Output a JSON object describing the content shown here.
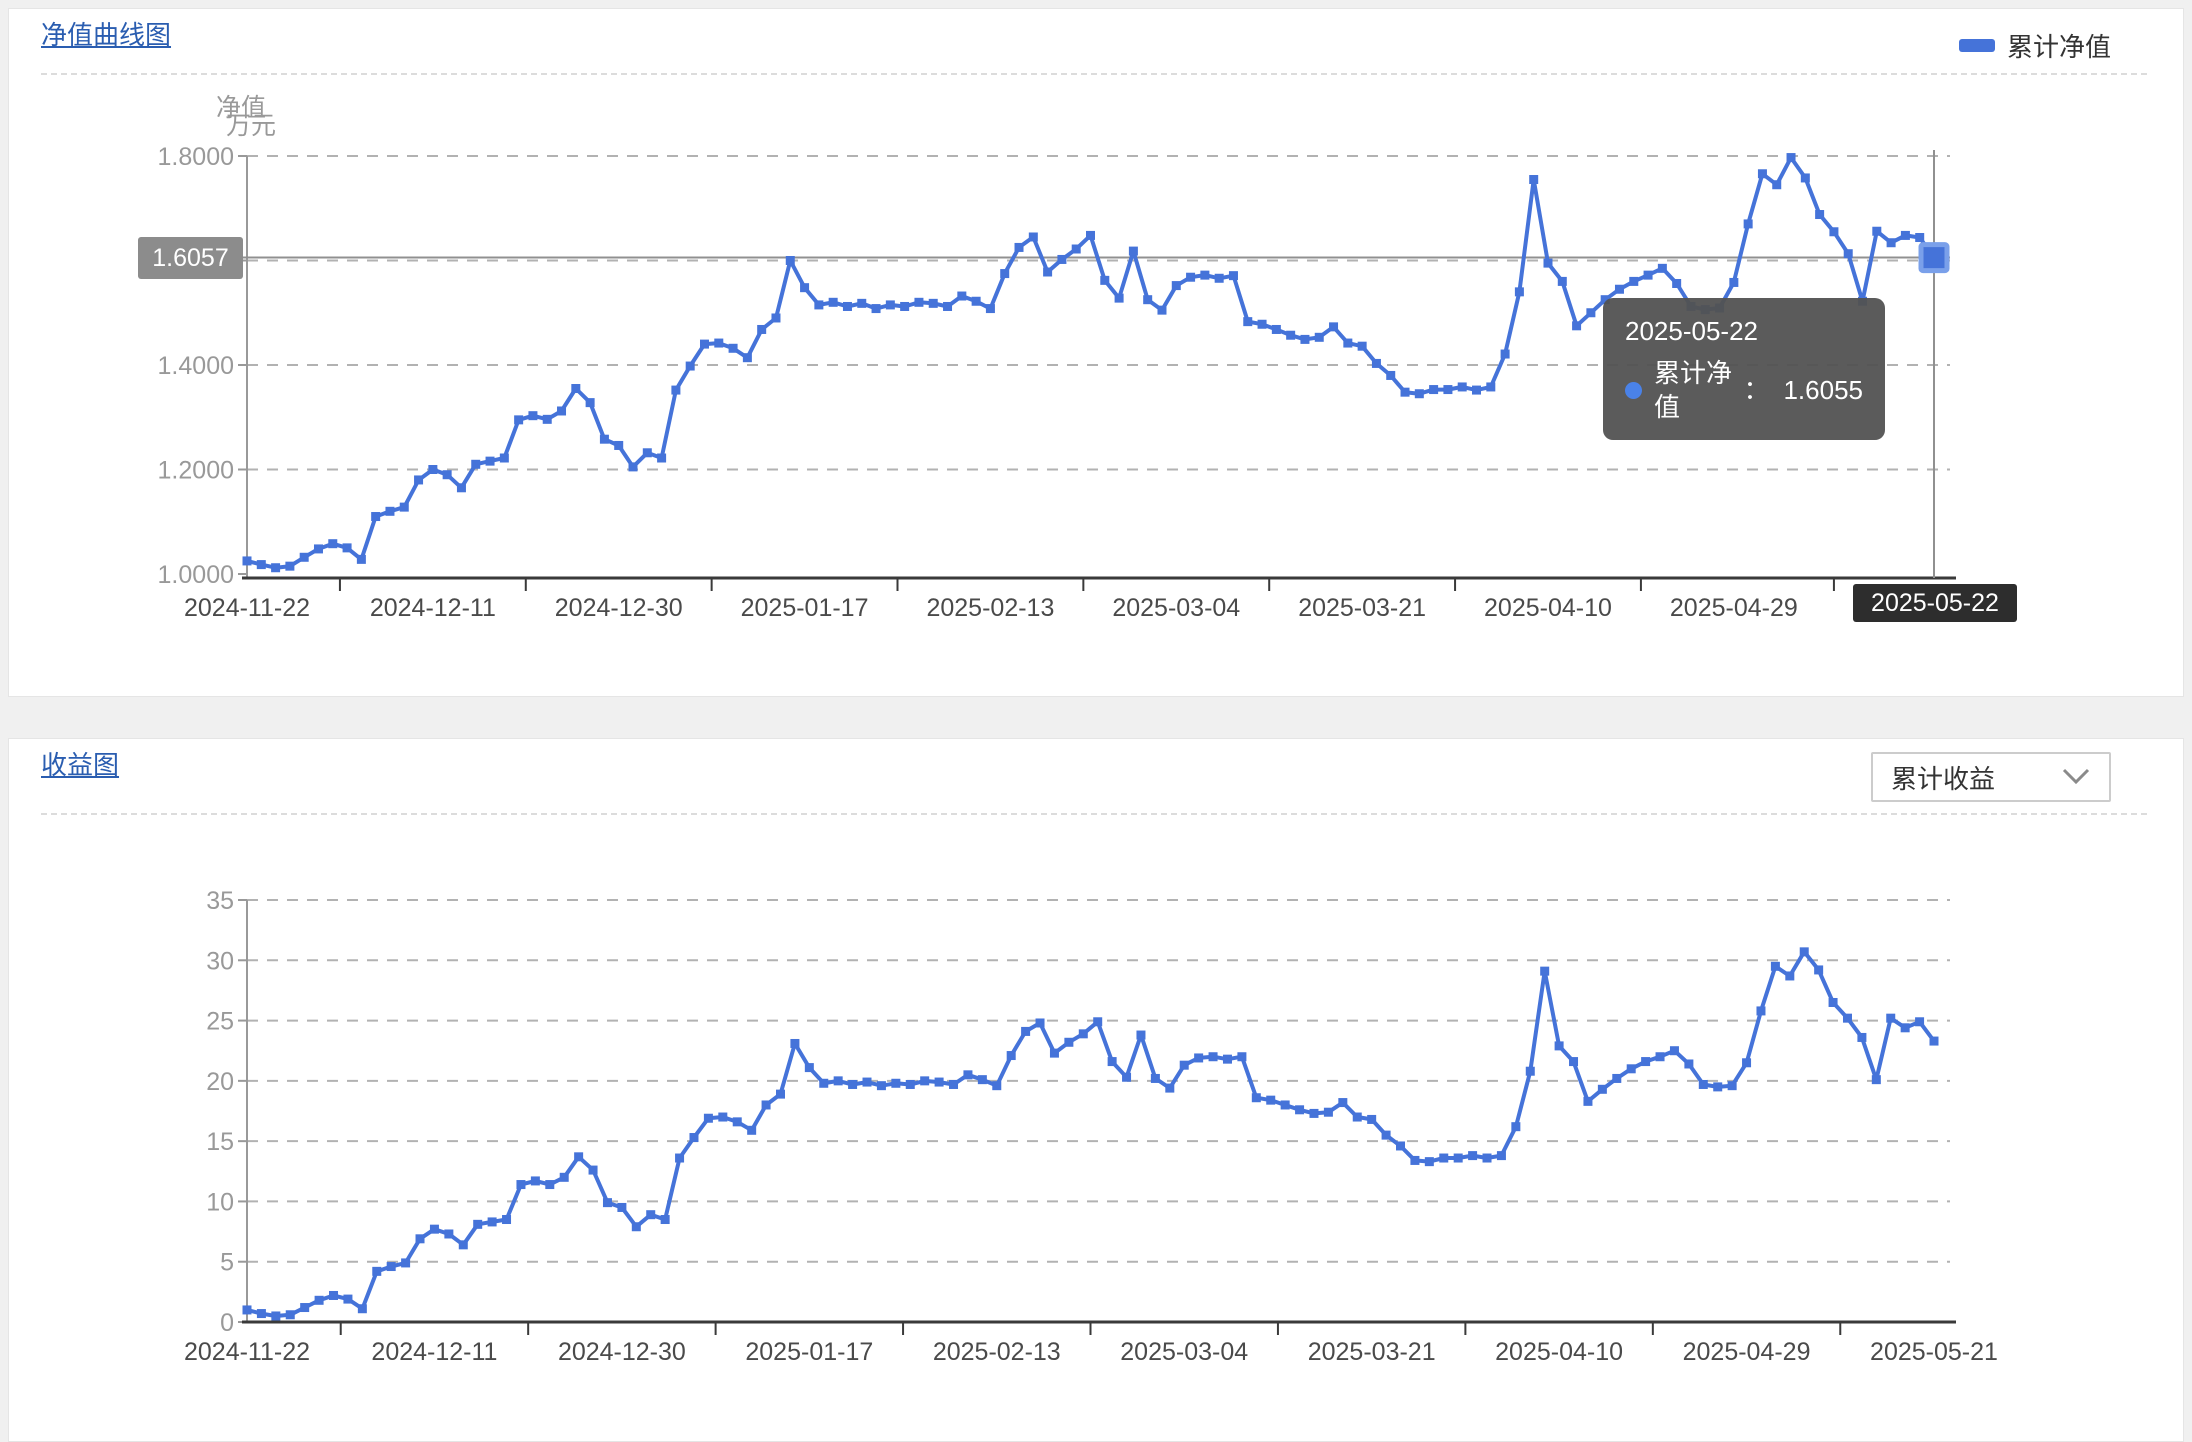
{
  "colors": {
    "page_bg": "#f0f0f0",
    "panel_bg": "#ffffff",
    "panel_border": "#e5e5e5",
    "separator": "#dcdcdc",
    "link_blue": "#2a5db0",
    "accent": "#4573d9",
    "grid": "#b2b2b2",
    "y_axis": "#999999",
    "x_axis": "#3a3a3a",
    "crosshair": "#909090",
    "tooltip_bg": "rgba(82,82,82,0.95)",
    "tooltip_dot": "#4a82e8",
    "axis_pointer_value_bg": "#8c8c8c",
    "axis_pointer_date_bg": "#2d2d2d",
    "dropdown_border": "#cccccc"
  },
  "panel1": {
    "title": "净值曲线图",
    "legend": {
      "label": "累计净值",
      "color": "#4573d9"
    },
    "y_axis_title": "净值",
    "axis_pointer": {
      "y_label": "1.6057",
      "x_label": "2025-05-22"
    },
    "tooltip": {
      "date": "2025-05-22",
      "series": "累计净值",
      "colon": "：",
      "value": "1.6055"
    }
  },
  "panel2": {
    "title": "收益图",
    "dropdown": {
      "value": "累计收益"
    },
    "y_axis_title": "万元"
  },
  "chart_data": [
    {
      "type": "line",
      "title": "净值曲线图",
      "series_name": "累计净值",
      "legend_position": "top-right",
      "grid_dashed": true,
      "ylabel": "净值",
      "ylim": [
        1.0,
        1.8
      ],
      "y_axis": {
        "min": 1.0,
        "max": 1.8,
        "grid_values": [
          1.0,
          1.2,
          1.4,
          1.6,
          1.8
        ],
        "tick_labels": [
          "1.0000",
          "1.2000",
          "1.4000",
          "",
          "1.8000"
        ]
      },
      "x_tick_indices": [
        0,
        13,
        26,
        39,
        52,
        65,
        78,
        91,
        104,
        118
      ],
      "x_tick_labels": [
        "2024-11-22",
        "2024-12-11",
        "2024-12-30",
        "2025-01-17",
        "2025-02-13",
        "2025-03-04",
        "2025-03-21",
        "2025-04-10",
        "2025-04-29",
        "2025-05-22"
      ],
      "highlight": {
        "index": 118,
        "date": "2025-05-22",
        "value": 1.6055,
        "pointer_y": 1.6057
      },
      "x": [
        "2024-11-22",
        "2024-11-25",
        "2024-11-26",
        "2024-11-27",
        "2024-11-28",
        "2024-11-29",
        "2024-12-02",
        "2024-12-03",
        "2024-12-04",
        "2024-12-05",
        "2024-12-06",
        "2024-12-09",
        "2024-12-10",
        "2024-12-11",
        "2024-12-12",
        "2024-12-13",
        "2024-12-16",
        "2024-12-17",
        "2024-12-18",
        "2024-12-19",
        "2024-12-20",
        "2024-12-23",
        "2024-12-24",
        "2024-12-25",
        "2024-12-26",
        "2024-12-27",
        "2024-12-30",
        "2024-12-31",
        "2025-01-02",
        "2025-01-03",
        "2025-01-06",
        "2025-01-07",
        "2025-01-08",
        "2025-01-09",
        "2025-01-10",
        "2025-01-13",
        "2025-01-14",
        "2025-01-15",
        "2025-01-16",
        "2025-01-17",
        "2025-01-20",
        "2025-01-21",
        "2025-01-22",
        "2025-01-23",
        "2025-01-24",
        "2025-01-27",
        "2025-02-05",
        "2025-02-06",
        "2025-02-07",
        "2025-02-10",
        "2025-02-11",
        "2025-02-12",
        "2025-02-13",
        "2025-02-14",
        "2025-02-17",
        "2025-02-18",
        "2025-02-19",
        "2025-02-20",
        "2025-02-21",
        "2025-02-24",
        "2025-02-25",
        "2025-02-26",
        "2025-02-27",
        "2025-02-28",
        "2025-03-03",
        "2025-03-04",
        "2025-03-05",
        "2025-03-06",
        "2025-03-07",
        "2025-03-10",
        "2025-03-11",
        "2025-03-12",
        "2025-03-13",
        "2025-03-14",
        "2025-03-17",
        "2025-03-18",
        "2025-03-19",
        "2025-03-20",
        "2025-03-21",
        "2025-03-24",
        "2025-03-25",
        "2025-03-26",
        "2025-03-27",
        "2025-03-28",
        "2025-03-31",
        "2025-04-01",
        "2025-04-02",
        "2025-04-03",
        "2025-04-07",
        "2025-04-08",
        "2025-04-09",
        "2025-04-10",
        "2025-04-11",
        "2025-04-14",
        "2025-04-15",
        "2025-04-16",
        "2025-04-17",
        "2025-04-18",
        "2025-04-21",
        "2025-04-22",
        "2025-04-23",
        "2025-04-24",
        "2025-04-25",
        "2025-04-28",
        "2025-04-29",
        "2025-04-30",
        "2025-05-06",
        "2025-05-07",
        "2025-05-08",
        "2025-05-09",
        "2025-05-12",
        "2025-05-13",
        "2025-05-14",
        "2025-05-15",
        "2025-05-16",
        "2025-05-19",
        "2025-05-20",
        "2025-05-21",
        "2025-05-22"
      ],
      "values": [
        1.025,
        1.018,
        1.012,
        1.015,
        1.032,
        1.048,
        1.058,
        1.05,
        1.028,
        1.11,
        1.12,
        1.128,
        1.18,
        1.2,
        1.19,
        1.165,
        1.21,
        1.216,
        1.222,
        1.295,
        1.303,
        1.296,
        1.312,
        1.355,
        1.328,
        1.258,
        1.246,
        1.205,
        1.232,
        1.222,
        1.352,
        1.398,
        1.44,
        1.442,
        1.432,
        1.414,
        1.468,
        1.49,
        1.6,
        1.548,
        1.515,
        1.52,
        1.512,
        1.518,
        1.508,
        1.515,
        1.512,
        1.52,
        1.518,
        1.512,
        1.532,
        1.522,
        1.508,
        1.575,
        1.625,
        1.645,
        1.578,
        1.602,
        1.622,
        1.648,
        1.562,
        1.528,
        1.618,
        1.525,
        1.505,
        1.552,
        1.568,
        1.572,
        1.566,
        1.571,
        1.483,
        1.478,
        1.468,
        1.457,
        1.449,
        1.453,
        1.473,
        1.442,
        1.436,
        1.403,
        1.38,
        1.348,
        1.345,
        1.353,
        1.353,
        1.358,
        1.352,
        1.358,
        1.421,
        1.54,
        1.755,
        1.595,
        1.56,
        1.475,
        1.5,
        1.525,
        1.545,
        1.56,
        1.572,
        1.585,
        1.556,
        1.512,
        1.506,
        1.509,
        1.558,
        1.67,
        1.766,
        1.745,
        1.797,
        1.758,
        1.688,
        1.655,
        1.613,
        1.522,
        1.656,
        1.634,
        1.648,
        1.644,
        1.6055
      ]
    },
    {
      "type": "line",
      "title": "收益图",
      "series_name": "累计收益",
      "grid_dashed": true,
      "ylabel": "万元",
      "ylim": [
        0,
        35
      ],
      "y_axis": {
        "min": 0,
        "max": 35,
        "grid_values": [
          0,
          5,
          10,
          15,
          20,
          25,
          30,
          35
        ],
        "tick_labels": [
          "0",
          "5",
          "10",
          "15",
          "20",
          "25",
          "30",
          "35"
        ]
      },
      "x_tick_indices": [
        0,
        13,
        26,
        39,
        52,
        65,
        78,
        91,
        104,
        117
      ],
      "x_tick_labels": [
        "2024-11-22",
        "2024-12-11",
        "2024-12-30",
        "2025-01-17",
        "2025-02-13",
        "2025-03-04",
        "2025-03-21",
        "2025-04-10",
        "2025-04-29",
        "2025-05-21"
      ],
      "x": [
        "2024-11-22",
        "2024-11-25",
        "2024-11-26",
        "2024-11-27",
        "2024-11-28",
        "2024-11-29",
        "2024-12-02",
        "2024-12-03",
        "2024-12-04",
        "2024-12-05",
        "2024-12-06",
        "2024-12-09",
        "2024-12-10",
        "2024-12-11",
        "2024-12-12",
        "2024-12-13",
        "2024-12-16",
        "2024-12-17",
        "2024-12-18",
        "2024-12-19",
        "2024-12-20",
        "2024-12-23",
        "2024-12-24",
        "2024-12-25",
        "2024-12-26",
        "2024-12-27",
        "2024-12-30",
        "2024-12-31",
        "2025-01-02",
        "2025-01-03",
        "2025-01-06",
        "2025-01-07",
        "2025-01-08",
        "2025-01-09",
        "2025-01-10",
        "2025-01-13",
        "2025-01-14",
        "2025-01-15",
        "2025-01-16",
        "2025-01-17",
        "2025-01-20",
        "2025-01-21",
        "2025-01-22",
        "2025-01-23",
        "2025-01-24",
        "2025-01-27",
        "2025-02-05",
        "2025-02-06",
        "2025-02-07",
        "2025-02-10",
        "2025-02-11",
        "2025-02-12",
        "2025-02-13",
        "2025-02-14",
        "2025-02-17",
        "2025-02-18",
        "2025-02-19",
        "2025-02-20",
        "2025-02-21",
        "2025-02-24",
        "2025-02-25",
        "2025-02-26",
        "2025-02-27",
        "2025-02-28",
        "2025-03-03",
        "2025-03-04",
        "2025-03-05",
        "2025-03-06",
        "2025-03-07",
        "2025-03-10",
        "2025-03-11",
        "2025-03-12",
        "2025-03-13",
        "2025-03-14",
        "2025-03-17",
        "2025-03-18",
        "2025-03-19",
        "2025-03-20",
        "2025-03-21",
        "2025-03-24",
        "2025-03-25",
        "2025-03-26",
        "2025-03-27",
        "2025-03-28",
        "2025-03-31",
        "2025-04-01",
        "2025-04-02",
        "2025-04-03",
        "2025-04-07",
        "2025-04-08",
        "2025-04-09",
        "2025-04-10",
        "2025-04-11",
        "2025-04-14",
        "2025-04-15",
        "2025-04-16",
        "2025-04-17",
        "2025-04-18",
        "2025-04-21",
        "2025-04-22",
        "2025-04-23",
        "2025-04-24",
        "2025-04-25",
        "2025-04-28",
        "2025-04-29",
        "2025-04-30",
        "2025-05-06",
        "2025-05-07",
        "2025-05-08",
        "2025-05-09",
        "2025-05-12",
        "2025-05-13",
        "2025-05-14",
        "2025-05-15",
        "2025-05-16",
        "2025-05-19",
        "2025-05-20",
        "2025-05-21"
      ],
      "values": [
        1.0,
        0.7,
        0.5,
        0.6,
        1.2,
        1.8,
        2.2,
        1.9,
        1.1,
        4.2,
        4.6,
        4.9,
        6.9,
        7.7,
        7.3,
        6.4,
        8.1,
        8.3,
        8.5,
        11.4,
        11.7,
        11.4,
        12.0,
        13.7,
        12.6,
        9.9,
        9.5,
        7.9,
        8.9,
        8.5,
        13.6,
        15.3,
        16.9,
        17.0,
        16.6,
        15.9,
        18.0,
        18.9,
        23.1,
        21.1,
        19.8,
        20.0,
        19.7,
        19.9,
        19.6,
        19.8,
        19.7,
        20.0,
        19.9,
        19.7,
        20.5,
        20.1,
        19.6,
        22.1,
        24.1,
        24.8,
        22.3,
        23.2,
        23.9,
        24.9,
        21.6,
        20.3,
        23.8,
        20.2,
        19.4,
        21.3,
        21.9,
        22.0,
        21.8,
        22.0,
        18.6,
        18.4,
        18.0,
        17.6,
        17.3,
        17.4,
        18.2,
        17.0,
        16.8,
        15.5,
        14.6,
        13.4,
        13.3,
        13.6,
        13.6,
        13.8,
        13.6,
        13.8,
        16.2,
        20.8,
        29.1,
        22.9,
        21.6,
        18.3,
        19.3,
        20.2,
        21.0,
        21.6,
        22.0,
        22.5,
        21.4,
        19.7,
        19.5,
        19.6,
        21.5,
        25.8,
        29.5,
        28.7,
        30.7,
        29.2,
        26.5,
        25.2,
        23.6,
        20.1,
        25.2,
        24.4,
        24.9,
        23.3
      ]
    }
  ]
}
